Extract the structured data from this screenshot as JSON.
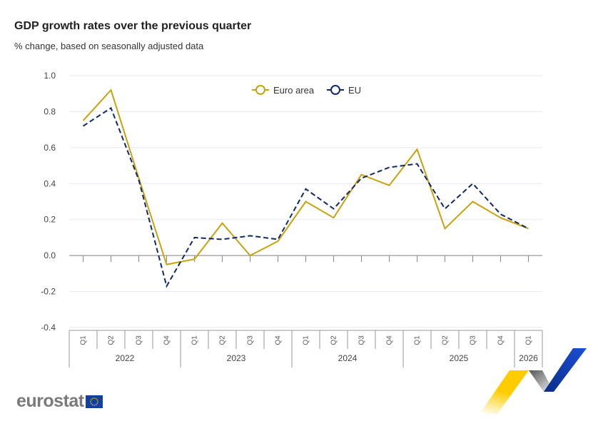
{
  "chart_data": {
    "type": "line",
    "title": "GDP growth rates over the previous quarter",
    "subtitle": "% change, based on seasonally adjusted data",
    "categories": [
      "Q1",
      "Q2",
      "Q3",
      "Q4",
      "Q1",
      "Q2",
      "Q3",
      "Q4",
      "Q1",
      "Q2",
      "Q3",
      "Q4",
      "Q1",
      "Q2",
      "Q3",
      "Q4",
      "Q1"
    ],
    "years": [
      {
        "label": "2022",
        "quarters": 4
      },
      {
        "label": "2023",
        "quarters": 4
      },
      {
        "label": "2024",
        "quarters": 4
      },
      {
        "label": "2025",
        "quarters": 4
      },
      {
        "label": "2026",
        "quarters": 1
      }
    ],
    "ylim": [
      -0.4,
      1.0
    ],
    "yticks": [
      "1.0",
      "0.8",
      "0.6",
      "0.4",
      "0.2",
      "0.0",
      "-0.2",
      "-0.4"
    ],
    "grid": true,
    "legend_position": "top-center",
    "series": [
      {
        "name": "Euro area",
        "color": "#c9a20e",
        "dash": false,
        "values": [
          0.75,
          0.92,
          0.43,
          -0.05,
          -0.02,
          0.18,
          0.0,
          0.08,
          0.3,
          0.21,
          0.45,
          0.39,
          0.59,
          0.15,
          0.3,
          0.21,
          0.15
        ]
      },
      {
        "name": "EU",
        "color": "#0e2a6b",
        "dash": true,
        "values": [
          0.72,
          0.82,
          0.42,
          -0.17,
          0.1,
          0.09,
          0.11,
          0.09,
          0.37,
          0.26,
          0.43,
          0.49,
          0.51,
          0.26,
          0.4,
          0.23,
          0.15
        ]
      }
    ]
  },
  "logo": {
    "text": "eurostat"
  }
}
